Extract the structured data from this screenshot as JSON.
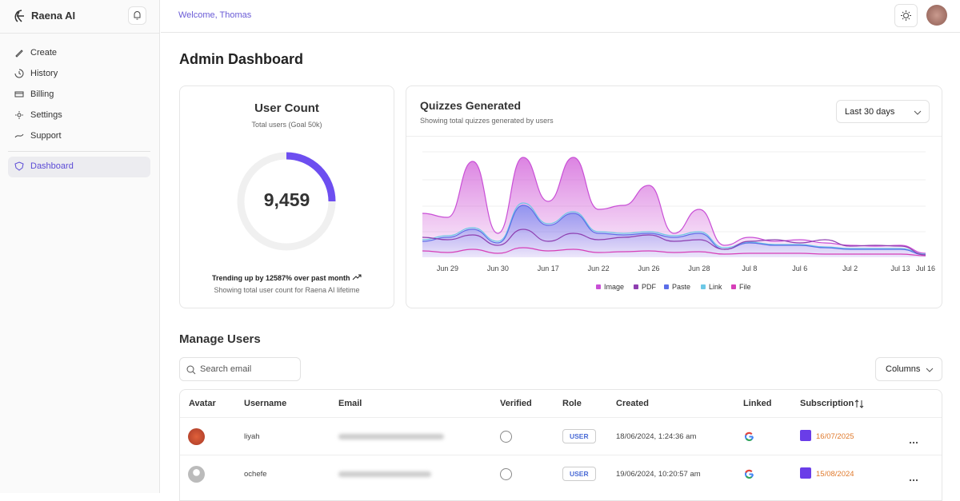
{
  "sidebar": {
    "brand": "Raena AI",
    "nav": [
      "Create",
      "History",
      "Billing",
      "Settings",
      "Support"
    ],
    "active": "Dashboard"
  },
  "topbar": {
    "welcome": "Welcome, Thomas"
  },
  "page": {
    "title": "Admin Dashboard"
  },
  "user_count": {
    "title": "User Count",
    "subtitle": "Total users (Goal 50k)",
    "value": "9,459",
    "trend": "Trending up by 12587% over past month",
    "footer": "Showing total user count for Raena AI lifetime"
  },
  "chart_data": {
    "type": "area",
    "title": "Quizzes Generated",
    "subtitle": "Showing total quizzes generated by users",
    "range": "Last 30 days",
    "categories": [
      null,
      "Jun 29",
      null,
      "Jun 30",
      null,
      "Jun 17",
      null,
      "Jun 22",
      null,
      "Jun 26",
      null,
      "Jun 28",
      null,
      "Jul 8",
      null,
      "Jul 6",
      null,
      "Jul 2",
      null,
      "Jul 13",
      "Jul 16"
    ],
    "grid": true,
    "series": [
      {
        "name": "Image",
        "color": "#c94fd6",
        "values": [
          55,
          50,
          120,
          30,
          125,
          70,
          125,
          60,
          65,
          90,
          30,
          60,
          15,
          25,
          20,
          22,
          18,
          15,
          14,
          15,
          5
        ]
      },
      {
        "name": "PDF",
        "color": "#8e3fb0",
        "values": [
          25,
          22,
          28,
          15,
          35,
          20,
          30,
          22,
          25,
          28,
          20,
          22,
          10,
          20,
          22,
          18,
          22,
          14,
          15,
          14,
          3
        ]
      },
      {
        "name": "Paste",
        "color": "#5b6ee8",
        "values": [
          20,
          25,
          35,
          18,
          65,
          40,
          55,
          30,
          28,
          30,
          25,
          30,
          10,
          18,
          15,
          15,
          12,
          10,
          10,
          10,
          3
        ]
      },
      {
        "name": "Link",
        "color": "#6cc8e6",
        "values": [
          22,
          27,
          37,
          20,
          68,
          42,
          57,
          32,
          30,
          32,
          27,
          32,
          12,
          19,
          16,
          16,
          13,
          11,
          11,
          11,
          4
        ]
      },
      {
        "name": "File",
        "color": "#d63fb8",
        "values": [
          8,
          6,
          10,
          5,
          12,
          8,
          10,
          6,
          7,
          8,
          6,
          7,
          4,
          5,
          5,
          5,
          4,
          4,
          4,
          4,
          2
        ]
      }
    ]
  },
  "users": {
    "title": "Manage Users",
    "search_placeholder": "Search email",
    "columns_button": "Columns",
    "headers": [
      "Avatar",
      "Username",
      "Email",
      "Verified",
      "Role",
      "Created",
      "Linked",
      "Subscription"
    ],
    "rows": [
      {
        "username": "liyah",
        "role": "USER",
        "created": "18/06/2024, 1:24:36 am",
        "subscription": "16/07/2025"
      },
      {
        "username": "ochefe",
        "role": "USER",
        "created": "19/06/2024, 10:20:57 am",
        "subscription": "15/08/2024"
      }
    ]
  }
}
